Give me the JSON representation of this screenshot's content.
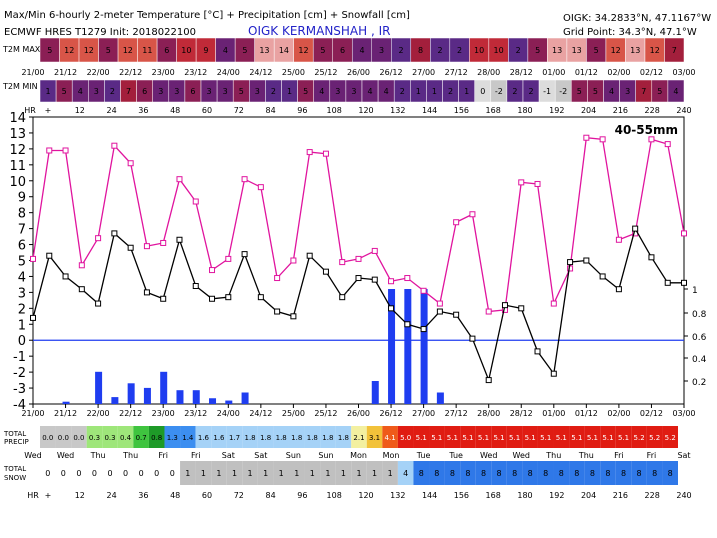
{
  "header": {
    "title_line1": "Max/Min 6-hourly 2-meter Temperature [°C] + Precipitation [cm] + Snowfall [cm]",
    "title_line2": "ECMWF HRES T1279 Init: 2018022100",
    "station": "OIGK KERMANSHAH , IR",
    "coord_line1": "OIGK: 34.2833°N, 47.1167°W",
    "coord_line2": "Grid Point: 34.3°N, 47.1°W"
  },
  "labels": {
    "t2m_max": "T2M MAX",
    "t2m_min": "T2M MIN",
    "hr": "HR",
    "total_precip": "TOTAL\nPRECIP",
    "total_snow": "TOTAL\nSNOW",
    "precip_note": "40-55mm"
  },
  "colors": {
    "max_line": "#e0149e",
    "min_line": "#000000",
    "bars": "#1f3df0",
    "zero_line": "#1f3df0"
  },
  "timeline": {
    "dates_top": [
      "21/00",
      "21/12",
      "22/00",
      "22/12",
      "23/00",
      "23/12",
      "24/00",
      "24/12",
      "25/00",
      "25/12",
      "26/00",
      "26/12",
      "27/00",
      "27/12",
      "28/00",
      "28/12",
      "01/00",
      "01/12",
      "02/00",
      "02/12",
      "03/00"
    ],
    "hours": [
      "+",
      "12",
      "24",
      "36",
      "48",
      "60",
      "72",
      "84",
      "96",
      "108",
      "120",
      "132",
      "144",
      "156",
      "168",
      "180",
      "192",
      "204",
      "216",
      "228",
      "240"
    ],
    "days": [
      "Wed",
      "Wed",
      "Thu",
      "Thu",
      "Fri",
      "Fri",
      "Sat",
      "Sat",
      "Sun",
      "Sun",
      "Mon",
      "Mon",
      "Tue",
      "Tue",
      "Wed",
      "Wed",
      "Thu",
      "Thu",
      "Fri",
      "Fri",
      "Sat"
    ]
  },
  "max_row": [
    "5",
    "12",
    "12",
    "5",
    "12",
    "11",
    "6",
    "10",
    "9",
    "4",
    "5",
    "13",
    "14",
    "12",
    "5",
    "6",
    "4",
    "3",
    "2",
    "8",
    "2",
    "2",
    "10",
    "10",
    "2",
    "5",
    "13",
    "13",
    "5",
    "12",
    "13",
    "12",
    "7"
  ],
  "min_row": [
    "1",
    "5",
    "4",
    "3",
    "2",
    "7",
    "6",
    "3",
    "3",
    "6",
    "3",
    "3",
    "5",
    "3",
    "2",
    "1",
    "5",
    "4",
    "3",
    "3",
    "4",
    "4",
    "2",
    "1",
    "1",
    "2",
    "1",
    "0",
    "-2",
    "2",
    "2",
    "-1",
    "-2",
    "5",
    "5",
    "4",
    "3",
    "7",
    "5",
    "4"
  ],
  "precip_row": [
    "0.0",
    "0.0",
    "0.0",
    "0.3",
    "0.3",
    "0.4",
    "0.7",
    "0.8",
    "1.3",
    "1.4",
    "1.6",
    "1.6",
    "1.7",
    "1.8",
    "1.8",
    "1.8",
    "1.8",
    "1.8",
    "1.8",
    "1.8",
    "2.1",
    "3.1",
    "4.1",
    "5.0",
    "5.1",
    "5.1",
    "5.1",
    "5.1",
    "5.1",
    "5.1",
    "5.1",
    "5.1",
    "5.1",
    "5.1",
    "5.1",
    "5.1",
    "5.1",
    "5.1",
    "5.2",
    "5.2",
    "5.2"
  ],
  "snow_row": [
    "0",
    "0",
    "0",
    "0",
    "0",
    "0",
    "0",
    "0",
    "0",
    "1",
    "1",
    "1",
    "1",
    "1",
    "1",
    "1",
    "1",
    "1",
    "1",
    "1",
    "1",
    "1",
    "1",
    "4",
    "8",
    "8",
    "8",
    "8",
    "8",
    "8",
    "8",
    "8",
    "8",
    "8",
    "8",
    "8",
    "8",
    "8",
    "8",
    "8",
    "8"
  ],
  "chart_data": {
    "type": "line",
    "x_unit": "forecast hour",
    "ylim": [
      -4,
      14
    ],
    "y_ticks": [
      14,
      13,
      12,
      11,
      10,
      9,
      8,
      7,
      6,
      5,
      4,
      3,
      2,
      1,
      0,
      -1,
      -2,
      -3,
      -4
    ],
    "y2_ticks": [
      "1",
      "0.8",
      "0.6",
      "0.4",
      "0.2"
    ],
    "y2lim": [
      0,
      1.2
    ],
    "grid": false,
    "series": [
      {
        "x": [
          0,
          6,
          12,
          18,
          24,
          30,
          36,
          42,
          48,
          54,
          60,
          66,
          72,
          78,
          84,
          90,
          96,
          102,
          108,
          114,
          120,
          126,
          132,
          138,
          144,
          150,
          156,
          162,
          168,
          174,
          180,
          186,
          192,
          198,
          204,
          210,
          216,
          222,
          228,
          234,
          240
        ],
        "y": [
          5.1,
          11.9,
          11.9,
          4.7,
          6.4,
          12.2,
          11.1,
          5.9,
          6.1,
          10.1,
          8.7,
          4.4,
          5.1,
          10.1,
          9.6,
          3.9,
          5.0,
          11.8,
          11.7,
          4.9,
          5.1,
          5.6,
          3.7,
          3.9,
          3.1,
          2.3,
          7.4,
          7.9,
          1.8,
          1.9,
          9.9,
          9.8,
          2.3,
          4.5,
          12.7,
          12.6,
          6.3,
          6.7,
          12.6,
          12.3,
          6.7
        ]
      },
      {
        "x": [
          0,
          6,
          12,
          18,
          24,
          30,
          36,
          42,
          48,
          54,
          60,
          66,
          72,
          78,
          84,
          90,
          96,
          102,
          108,
          114,
          120,
          126,
          132,
          138,
          144,
          150,
          156,
          162,
          168,
          174,
          180,
          186,
          192,
          198,
          204,
          210,
          216,
          222,
          228,
          234,
          240
        ],
        "y": [
          1.4,
          5.3,
          4.0,
          3.2,
          2.3,
          6.7,
          5.8,
          3.0,
          2.6,
          6.3,
          3.4,
          2.6,
          2.7,
          5.4,
          2.7,
          1.8,
          1.5,
          5.3,
          4.3,
          2.7,
          3.9,
          3.8,
          2.0,
          1.0,
          0.7,
          1.8,
          1.6,
          0.1,
          -2.5,
          2.2,
          2.0,
          -0.7,
          -2.1,
          4.9,
          5.0,
          4.0,
          3.2,
          7.0,
          5.2,
          3.6,
          3.6
        ]
      }
    ],
    "precip_bars": {
      "x": [
        12,
        24,
        30,
        36,
        42,
        48,
        54,
        60,
        66,
        72,
        78,
        126,
        132,
        138,
        144,
        150
      ],
      "values": [
        0.02,
        0.28,
        0.06,
        0.18,
        0.14,
        0.28,
        0.12,
        0.12,
        0.05,
        0.03,
        0.1,
        0.2,
        1.0,
        1.0,
        1.0,
        0.1
      ]
    }
  }
}
